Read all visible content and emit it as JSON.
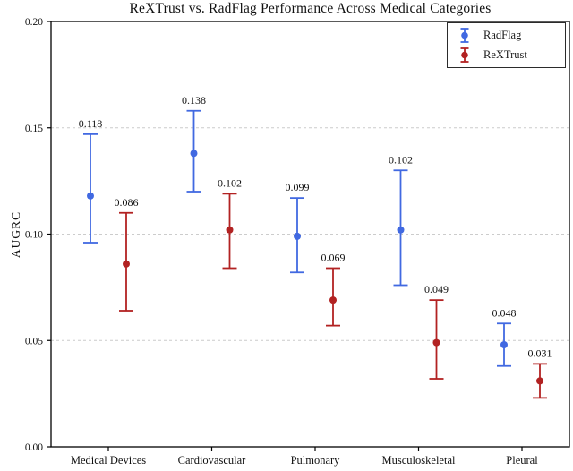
{
  "figure": {
    "background": "#ffffff"
  },
  "chart_data": {
    "type": "scatter",
    "subtype": "errorbar",
    "title": "ReXTrust vs. RadFlag Performance Across Medical Categories",
    "xlabel": "",
    "ylabel": "AUGRC",
    "categories": [
      "Medical Devices",
      "Cardiovascular",
      "Pulmonary",
      "Musculoskeletal",
      "Pleural"
    ],
    "ylim": [
      0.0,
      0.2
    ],
    "ytick_values": [
      0.0,
      0.05,
      0.1,
      0.15,
      0.2
    ],
    "ytick_labels": [
      "0.00",
      "0.05",
      "0.10",
      "0.15",
      "0.20"
    ],
    "grid": "horizontal, dashed, light gray",
    "gridline_color": "#cccccc",
    "axis_color": "#000000",
    "legend_position": "upper right",
    "series": [
      {
        "name": "RadFlag",
        "color": "#4169E1",
        "values": [
          0.118,
          0.138,
          0.099,
          0.102,
          0.048
        ],
        "err_low": [
          0.096,
          0.12,
          0.082,
          0.076,
          0.038
        ],
        "err_high": [
          0.147,
          0.158,
          0.117,
          0.13,
          0.058
        ],
        "point_labels": [
          "0.118",
          "0.138",
          "0.099",
          "0.102",
          "0.048"
        ]
      },
      {
        "name": "ReXTrust",
        "color": "#B22222",
        "values": [
          0.086,
          0.102,
          0.069,
          0.049,
          0.031
        ],
        "err_low": [
          0.064,
          0.084,
          0.057,
          0.032,
          0.023
        ],
        "err_high": [
          0.11,
          0.119,
          0.084,
          0.069,
          0.039
        ],
        "point_labels": [
          "0.086",
          "0.102",
          "0.069",
          "0.049",
          "0.031"
        ]
      }
    ]
  }
}
